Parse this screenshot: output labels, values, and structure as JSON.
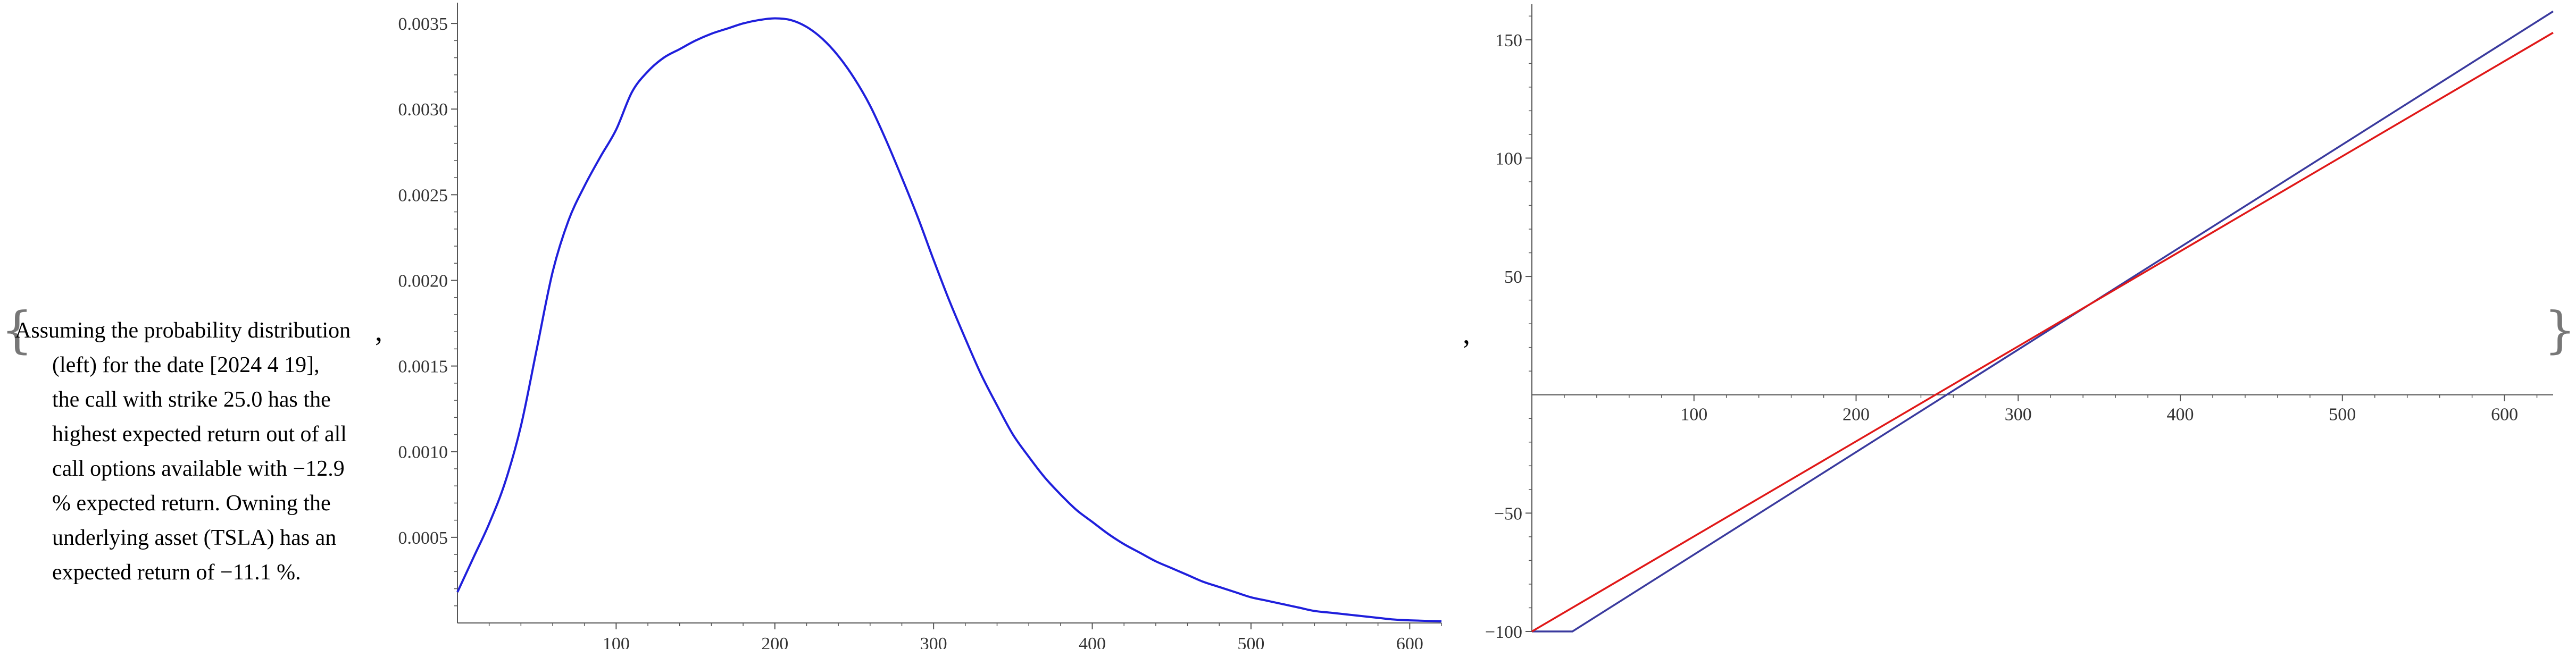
{
  "caption": {
    "open_brace": "{",
    "close_brace": "}",
    "comma": ",",
    "lines": [
      "Assuming the probability distribution",
      "(left) for the date [2024 4 19],",
      "the call with strike 25.0 has the",
      "highest expected return out of all",
      "call options available with −12.9",
      "% expected return. Owning the",
      "underlying asset (TSLA) has an",
      "expected return of −11.1 %."
    ]
  },
  "colors": {
    "density": "#1f1fdc",
    "call": "#3a3a9e",
    "asset": "#e01818",
    "axis": "#555555"
  },
  "chart_data": [
    {
      "type": "line",
      "title": "",
      "xlabel": "",
      "ylabel": "",
      "xlim": [
        0,
        620
      ],
      "ylim": [
        0,
        0.00355
      ],
      "xticks": [
        100,
        200,
        300,
        400,
        500,
        600
      ],
      "xtick_labels": [
        "100",
        "200",
        "300",
        "400",
        "500",
        "600"
      ],
      "yticks": [
        0.0005,
        0.001,
        0.0015,
        0.002,
        0.0025,
        0.003,
        0.0035
      ],
      "ytick_labels": [
        "0.0005",
        "0.0010",
        "0.0015",
        "0.0020",
        "0.0025",
        "0.0030",
        "0.0035"
      ],
      "grid": false,
      "series": [
        {
          "x": [
            0,
            10,
            20,
            30,
            40,
            50,
            60,
            70,
            80,
            90,
            100,
            110,
            120,
            130,
            140,
            150,
            160,
            170,
            180,
            190,
            200,
            210,
            220,
            230,
            240,
            250,
            260,
            270,
            280,
            290,
            300,
            310,
            320,
            330,
            340,
            350,
            360,
            370,
            380,
            390,
            400,
            410,
            420,
            430,
            440,
            450,
            460,
            470,
            480,
            490,
            500,
            510,
            520,
            530,
            540,
            550,
            560,
            570,
            580,
            590,
            600,
            620
          ],
          "y": [
            0.00018,
            0.00038,
            0.00058,
            0.00082,
            0.00115,
            0.0016,
            0.00205,
            0.00235,
            0.00255,
            0.00272,
            0.00288,
            0.0031,
            0.00322,
            0.0033,
            0.00335,
            0.0034,
            0.00344,
            0.00347,
            0.0035,
            0.00352,
            0.00353,
            0.00352,
            0.00348,
            0.00341,
            0.00331,
            0.00318,
            0.00302,
            0.00282,
            0.0026,
            0.00237,
            0.00212,
            0.00188,
            0.00166,
            0.00145,
            0.00127,
            0.0011,
            0.00097,
            0.00085,
            0.00075,
            0.00066,
            0.00059,
            0.00052,
            0.00046,
            0.00041,
            0.00036,
            0.00032,
            0.00028,
            0.00024,
            0.00021,
            0.00018,
            0.00015,
            0.00013,
            0.00011,
            9e-05,
            7e-05,
            6e-05,
            5e-05,
            4e-05,
            3e-05,
            2e-05,
            1.5e-05,
            1e-05
          ]
        }
      ]
    },
    {
      "type": "line",
      "title": "",
      "xlabel": "",
      "ylabel": "",
      "xlim": [
        0,
        630
      ],
      "ylim": [
        -100,
        165
      ],
      "xticks": [
        100,
        200,
        300,
        400,
        500,
        600
      ],
      "xtick_labels": [
        "100",
        "200",
        "300",
        "400",
        "500",
        "600"
      ],
      "yticks": [
        -100,
        -50,
        50,
        100,
        150
      ],
      "ytick_labels": [
        "−100",
        "−50",
        "50",
        "100",
        "150"
      ],
      "grid": false,
      "series": [
        {
          "x": [
            0,
            25,
            630
          ],
          "y": [
            -100,
            -100,
            162
          ]
        },
        {
          "x": [
            0,
            630
          ],
          "y": [
            -100,
            153
          ]
        }
      ]
    }
  ]
}
